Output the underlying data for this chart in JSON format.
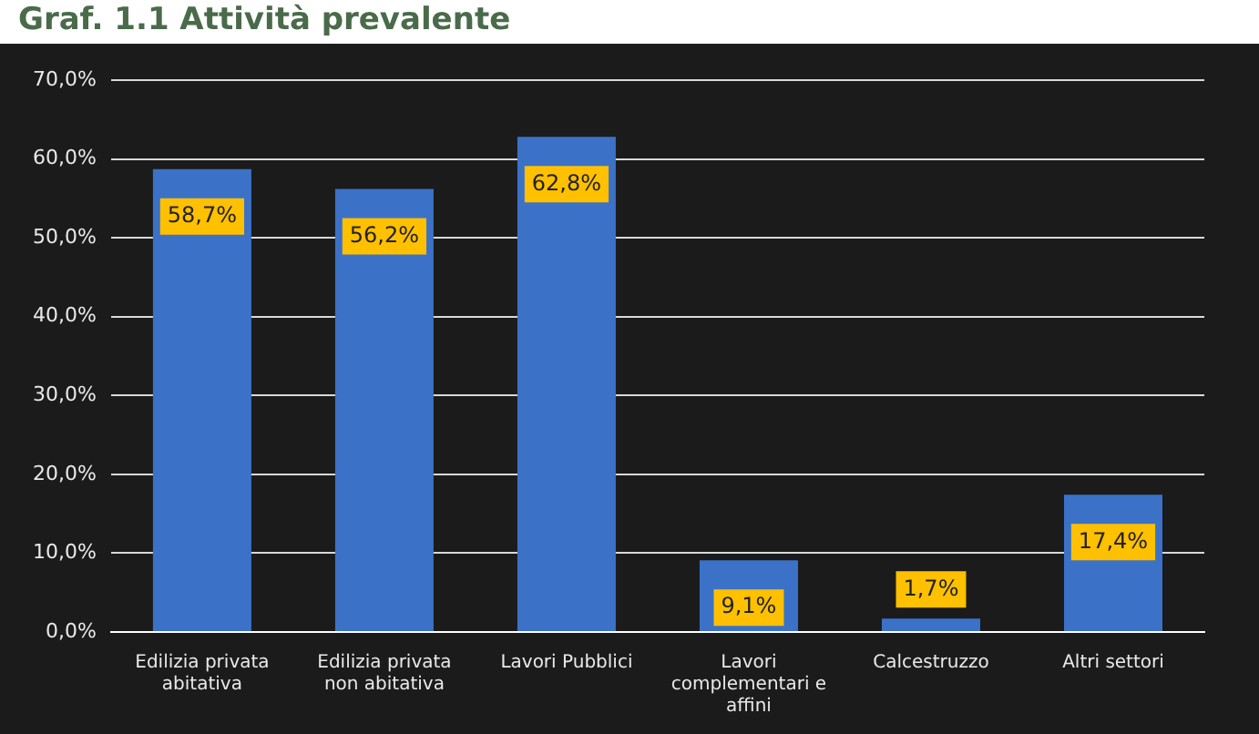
{
  "chart_data": {
    "type": "bar",
    "title": "Graf. 1.1 Attività prevalente",
    "categories": [
      "Edilizia privata abitativa",
      "Edilizia privata non abitativa",
      "Lavori Pubblici",
      "Lavori complementari e affini",
      "Calcestruzzo",
      "Altri settori"
    ],
    "values": [
      58.7,
      56.2,
      62.8,
      9.1,
      1.7,
      17.4
    ],
    "color": "#3b72c8",
    "value_labels": [
      "58,7%",
      "56,2%",
      "62,8%",
      "9,1%",
      "1,7%",
      "17,4%"
    ],
    "ylim": [
      0,
      70
    ],
    "yticks": [
      {
        "value": 0,
        "label": "0,0%"
      },
      {
        "value": 10,
        "label": "10,0%"
      },
      {
        "value": 20,
        "label": "20,0%"
      },
      {
        "value": 30,
        "label": "30,0%"
      },
      {
        "value": 40,
        "label": "40,0%"
      },
      {
        "value": 50,
        "label": "50,0%"
      },
      {
        "value": 60,
        "label": "60,0%"
      },
      {
        "value": 70,
        "label": "70,0%"
      }
    ],
    "grid": "y",
    "legend": false
  }
}
